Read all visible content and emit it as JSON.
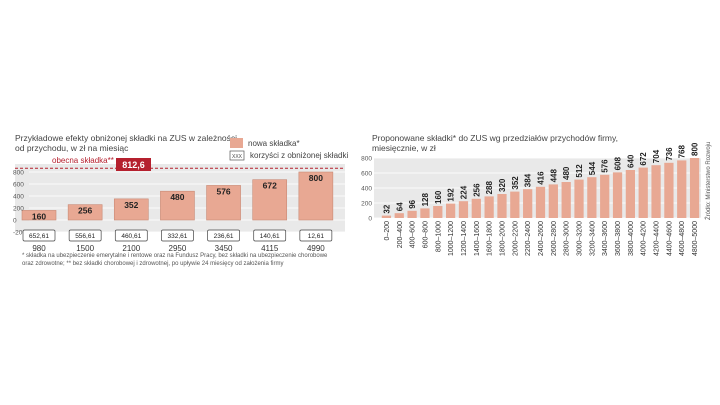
{
  "colors": {
    "bar": "#e8a893",
    "bar_stroke": "#c98a75",
    "current_line": "#b5202e",
    "current_label_bg": "#b5202e",
    "panel_bg": "#e9e9e9",
    "text": "#444444",
    "axis_text": "#555555"
  },
  "chart_data": [
    {
      "type": "bar",
      "title": "Przykładowe efekty obniżonej składki na ZUS w zależności od przychodu, w zł na miesiąc",
      "title_lines": [
        "Przykładowe efekty obniżonej składki na ZUS w zależności",
        "od przychodu, w zł na miesiąc"
      ],
      "categories": [
        "980",
        "1500",
        "2100",
        "2950",
        "3450",
        "4115",
        "4990"
      ],
      "values": [
        160,
        256,
        352,
        480,
        576,
        672,
        800
      ],
      "value_labels": [
        "160",
        "256",
        "352",
        "480",
        "576",
        "672",
        "800"
      ],
      "savings_labels": [
        "652,61",
        "556,61",
        "460,61",
        "332,61",
        "236,61",
        "140,61",
        "12,61"
      ],
      "current_line_value": 812.6,
      "current_line_label": "obecna składka**",
      "current_value_label": "812,6",
      "ylim": [
        -200,
        800
      ],
      "yticks": [
        "800",
        "600",
        "400",
        "200",
        "0",
        "-200"
      ],
      "ytick_values": [
        800,
        600,
        400,
        200,
        0,
        -200
      ],
      "legend": [
        {
          "label": "nowa składka*",
          "kind": "bar"
        },
        {
          "label": "korzyści z obniżonej składki",
          "kind": "box",
          "box_text": "XXX"
        }
      ],
      "footnotes": [
        "* składka na ubezpieczenie emerytalne i rentowe oraz na Fundusz Pracy, bez składki na ubezpieczenie chorobowe",
        "oraz zdrowotne; ** bez składki chorobowej i zdrowotnej, po upływie 24 miesięcy od założenia firmy"
      ]
    },
    {
      "type": "bar",
      "title": "Proponowane składki* do ZUS wg przedziałów przychodów firmy, miesięcznie, w zł",
      "title_lines": [
        "Proponowane składki* do  ZUS wg przedziałów przychodów firmy,",
        "miesięcznie, w zł"
      ],
      "categories": [
        "0–200",
        "200–400",
        "400–600",
        "600–800",
        "800–1000",
        "1000–1200",
        "1200–1400",
        "1400–1600",
        "1600–1800",
        "1800–2000",
        "2000–2200",
        "2200–2400",
        "2400–2600",
        "2600–2800",
        "2800–3000",
        "3000–3200",
        "3200–3400",
        "3400–3600",
        "3600–3800",
        "3800–4000",
        "4000–4200",
        "4200–4400",
        "4400–4600",
        "4600–4800",
        "4800–5000"
      ],
      "values": [
        32,
        64,
        96,
        128,
        160,
        192,
        224,
        256,
        288,
        320,
        352,
        384,
        416,
        448,
        480,
        512,
        544,
        576,
        608,
        640,
        672,
        704,
        736,
        768,
        800
      ],
      "ylim": [
        0,
        800
      ],
      "yticks": [
        "800",
        "600",
        "400",
        "200",
        "0"
      ],
      "ytick_values": [
        800,
        600,
        400,
        200,
        0
      ],
      "source": "Źródło: Ministerstwo Rozwoju"
    }
  ]
}
